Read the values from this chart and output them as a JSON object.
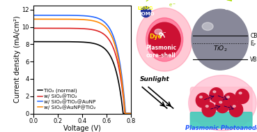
{
  "xlabel": "Voltage (V)",
  "ylabel": "Current density (mA/cm²)",
  "xlim": [
    0.0,
    0.8
  ],
  "ylim": [
    0.0,
    12.5
  ],
  "yticks": [
    0,
    2,
    4,
    6,
    8,
    10,
    12
  ],
  "xticks": [
    0.0,
    0.2,
    0.4,
    0.6,
    0.8
  ],
  "curves": [
    {
      "label": "TiO₂ (normal)",
      "color": "#000000",
      "jsc": 8.3,
      "voc": 0.735,
      "Vt": 0.065
    },
    {
      "label": "w/ SiO₂@TiO₂",
      "color": "#dd2222",
      "jsc": 9.85,
      "voc": 0.75,
      "Vt": 0.065
    },
    {
      "label": "w/ SiO₂@TiO₂@AuNP",
      "color": "#2266ff",
      "jsc": 11.35,
      "voc": 0.755,
      "Vt": 0.065
    },
    {
      "label": "w/ SiO₂@AuNP@TiO₂",
      "color": "#ff8800",
      "jsc": 10.9,
      "voc": 0.752,
      "Vt": 0.065
    }
  ],
  "figsize": [
    3.69,
    1.89
  ],
  "dpi": 100,
  "legend_fontsize": 5.2,
  "axis_fontsize": 7.0,
  "tick_fontsize": 6.0,
  "linewidth": 1.2,
  "background_color": "#ffffff"
}
